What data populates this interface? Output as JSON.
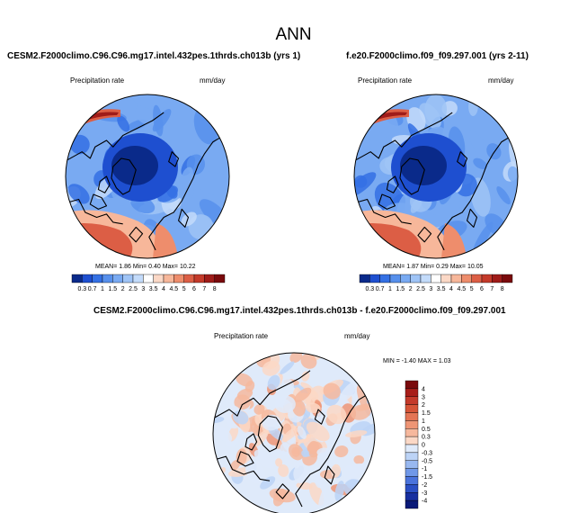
{
  "page": {
    "title": "ANN"
  },
  "panels": {
    "left": {
      "case": "CESM2.F2000climo.C96.C96.mg17.intel.432pes.1thrds.ch013b (yrs 1)",
      "field": "Precipitation rate",
      "units": "mm/day",
      "stats": "MEAN=  1.86  Min=  0.40  Max=  10.22"
    },
    "right": {
      "case": "f.e20.F2000climo.f09_f09.297.001 (yrs 2-11)",
      "field": "Precipitation rate",
      "units": "mm/day",
      "stats": "MEAN=  1.87  Min=  0.29  Max=  10.05"
    },
    "diff": {
      "case": "CESM2.F2000climo.C96.C96.mg17.intel.432pes.1thrds.ch013b - f.e20.F2000climo.f09_f09.297.001",
      "field": "Precipitation rate",
      "units": "mm/day",
      "stats": "MIN =  -1.40  MAX =   1.03"
    }
  },
  "chart_data": [
    {
      "type": "heatmap",
      "projection": "north-polar-stereographic",
      "title": "CESM2.F2000climo.C96.C96.mg17.intel.432pes.1thrds.ch013b (yrs 1)",
      "variable": "Precipitation rate",
      "units": "mm/day",
      "mean": 1.86,
      "min": 0.4,
      "max": 10.22,
      "colorbar_levels": [
        "0.3",
        "0.7",
        "1",
        "1.5",
        "2",
        "2.5",
        "3",
        "3.5",
        "4",
        "4.5",
        "5",
        "6",
        "7",
        "8"
      ],
      "colorbar_colors": [
        "#0a2a8a",
        "#1e4fd0",
        "#3470e4",
        "#5790ec",
        "#79aaf2",
        "#9fc4f6",
        "#c3dbfa",
        "#ffffff",
        "#fbd8c6",
        "#f7b79a",
        "#ee8d6c",
        "#dc5e45",
        "#c43a2a",
        "#9f1c19",
        "#7a0a0c"
      ]
    },
    {
      "type": "heatmap",
      "projection": "north-polar-stereographic",
      "title": "f.e20.F2000climo.f09_f09.297.001 (yrs 2-11)",
      "variable": "Precipitation rate",
      "units": "mm/day",
      "mean": 1.87,
      "min": 0.29,
      "max": 10.05,
      "colorbar_levels": [
        "0.3",
        "0.7",
        "1",
        "1.5",
        "2",
        "2.5",
        "3",
        "3.5",
        "4",
        "4.5",
        "5",
        "6",
        "7",
        "8"
      ],
      "colorbar_colors": [
        "#0a2a8a",
        "#1e4fd0",
        "#3470e4",
        "#5790ec",
        "#79aaf2",
        "#9fc4f6",
        "#c3dbfa",
        "#ffffff",
        "#fbd8c6",
        "#f7b79a",
        "#ee8d6c",
        "#dc5e45",
        "#c43a2a",
        "#9f1c19",
        "#7a0a0c"
      ]
    },
    {
      "type": "heatmap",
      "projection": "north-polar-stereographic",
      "title": "CESM2.F2000climo.C96.C96.mg17.intel.432pes.1thrds.ch013b - f.e20.F2000climo.f09_f09.297.001",
      "variable": "Precipitation rate",
      "units": "mm/day",
      "min": -1.4,
      "max": 1.03,
      "colorbar_levels": [
        "4",
        "3",
        "2",
        "1.5",
        "1",
        "0.5",
        "0.3",
        "0",
        "-0.3",
        "-0.5",
        "-1",
        "-1.5",
        "-2",
        "-3",
        "-4"
      ],
      "colorbar_colors": [
        "#7a0a0c",
        "#a81e19",
        "#c43a2a",
        "#d65437",
        "#e47454",
        "#ee9575",
        "#f6b89d",
        "#fbd8c6",
        "#dfeafa",
        "#bcd3f6",
        "#98b8f0",
        "#7098e8",
        "#4a73dc",
        "#2a4fc4",
        "#172fa0",
        "#0a1a78"
      ]
    }
  ]
}
